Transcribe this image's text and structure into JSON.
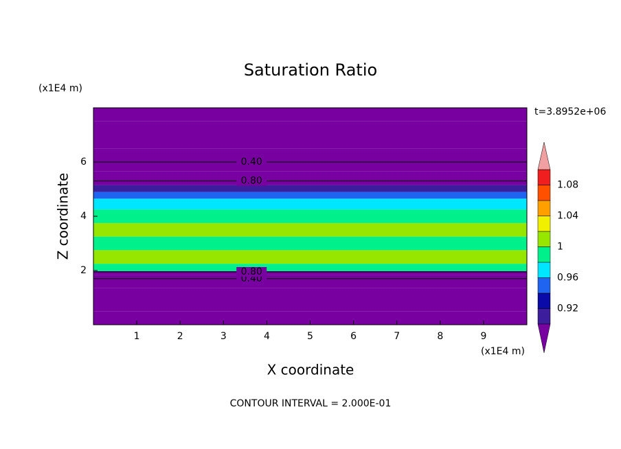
{
  "chart_data": {
    "type": "contour",
    "title": "Saturation Ratio",
    "xlabel": "X coordinate",
    "ylabel": "Z coordinate",
    "x_unit": "(x1E4 m)",
    "y_unit": "(x1E4 m)",
    "time_label": "t=3.8952e+06",
    "footer": "CONTOUR INTERVAL = 2.000E-01",
    "xlim": [
      0,
      10
    ],
    "ylim": [
      0,
      8
    ],
    "xticks": [
      1,
      2,
      3,
      4,
      5,
      6,
      7,
      8,
      9
    ],
    "yticks": [
      2,
      4,
      6
    ],
    "z": [
      0,
      1,
      1.7,
      1.95,
      2.0,
      2.5,
      3.0,
      3.5,
      4.0,
      4.5,
      4.8,
      5.0,
      5.3,
      6.0,
      7.0,
      8.0
    ],
    "values": [
      0.1,
      0.2,
      0.4,
      0.8,
      0.99,
      1.01,
      0.99,
      1.0,
      0.98,
      0.97,
      0.95,
      0.9,
      0.8,
      0.4,
      0.2,
      0.1
    ],
    "levels": [
      0.9,
      0.92,
      0.94,
      0.96,
      0.98,
      1.0,
      1.02,
      1.04,
      1.06,
      1.08,
      1.1
    ],
    "colors": [
      "#3c1e9c",
      "#0a0aa8",
      "#1e64f0",
      "#00e6ff",
      "#00f08c",
      "#96e600",
      "#f0f000",
      "#ffa000",
      "#ff5000",
      "#f01e1e"
    ],
    "below_color": "#7800a0",
    "above_color": "#f0a0a0",
    "colorbar_ticks": [
      0.92,
      0.96,
      1,
      1.04,
      1.08
    ],
    "contours": [
      {
        "value": 0.4,
        "label": "0.40"
      },
      {
        "value": 0.8,
        "label": "0.80"
      }
    ]
  }
}
